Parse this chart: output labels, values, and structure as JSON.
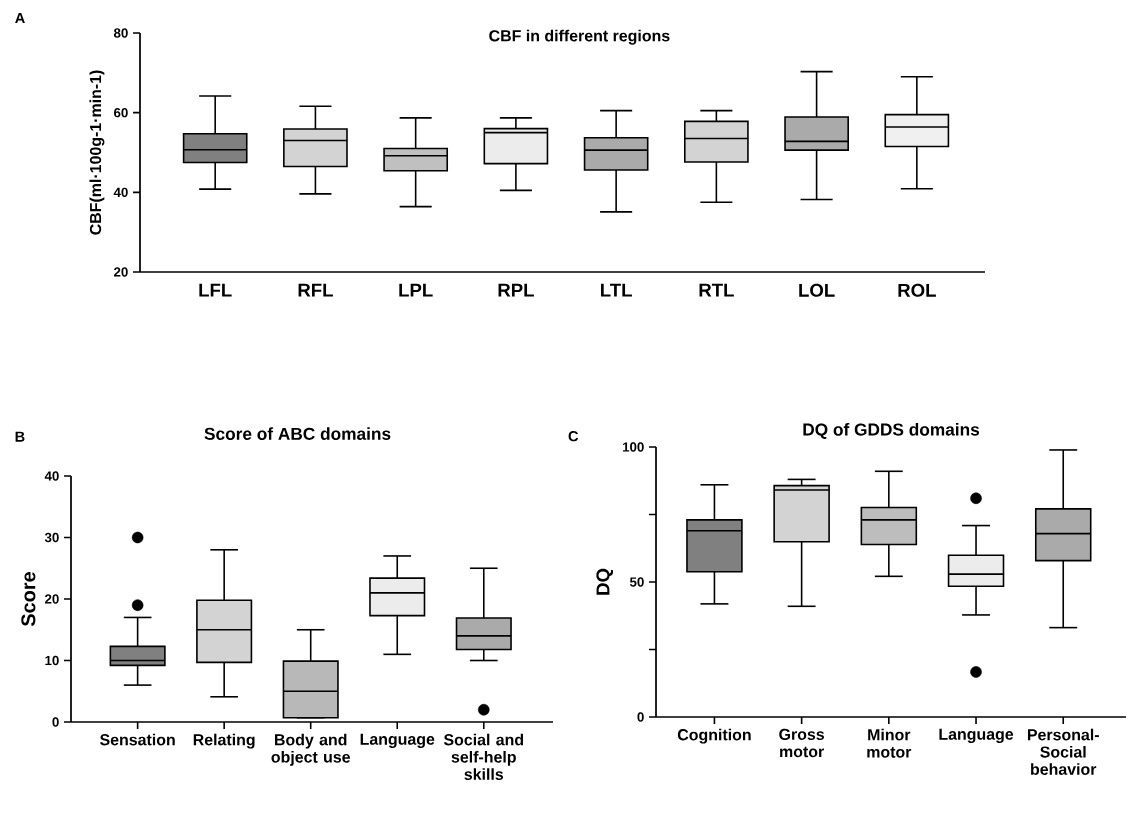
{
  "chart_data": [
    {
      "type": "box",
      "title": "CBF in different regions",
      "ylabel": "CBF(ml·100g-1·min-1)",
      "annotations": [
        "A"
      ],
      "categories": [
        "LFL",
        "RFL",
        "LPL",
        "RPL",
        "LTL",
        "RTL",
        "LOL",
        "ROL"
      ],
      "colors": [
        "#808080",
        "#d3d3d3",
        "#c0c0c0",
        "#ececec",
        "#aaaaaa",
        "#d3d3d3",
        "#aaaaaa",
        "#f0f0f0"
      ],
      "ylim": [
        20,
        80
      ],
      "yticks": [
        20,
        40,
        60,
        80
      ],
      "boxes": [
        {
          "low": 40.8,
          "q1": 47.5,
          "median": 50.7,
          "q3": 54.7,
          "high": 64.2
        },
        {
          "low": 39.6,
          "q1": 46.5,
          "median": 53.0,
          "q3": 55.9,
          "high": 61.6
        },
        {
          "low": 36.4,
          "q1": 45.4,
          "median": 49.2,
          "q3": 51.0,
          "high": 58.7
        },
        {
          "low": 40.5,
          "q1": 47.2,
          "median": 55.0,
          "q3": 56.0,
          "high": 58.7
        },
        {
          "low": 35.1,
          "q1": 45.6,
          "median": 50.6,
          "q3": 53.7,
          "high": 60.5
        },
        {
          "low": 37.5,
          "q1": 47.6,
          "median": 53.5,
          "q3": 57.8,
          "high": 60.5
        },
        {
          "low": 38.2,
          "q1": 50.6,
          "median": 52.8,
          "q3": 58.9,
          "high": 70.3
        },
        {
          "low": 40.9,
          "q1": 51.5,
          "median": 56.4,
          "q3": 59.5,
          "high": 69.0
        }
      ]
    },
    {
      "type": "box",
      "title": "Score of ABC domains",
      "ylabel": "Score",
      "annotations": [
        "B"
      ],
      "categories": [
        "Sensation",
        "Relating",
        "Body and object use",
        "Language",
        "Social and self-help skills"
      ],
      "colors": [
        "#808080",
        "#d3d3d3",
        "#b8b8b8",
        "#ececec",
        "#aaaaaa"
      ],
      "ylim": [
        0,
        40
      ],
      "yticks": [
        0,
        10,
        20,
        30,
        40
      ],
      "boxes": [
        {
          "low": 6.0,
          "q1": 9.2,
          "median": 10.0,
          "q3": 12.3,
          "high": 17.0,
          "outliers": [
            19.0,
            30.0
          ]
        },
        {
          "low": 4.1,
          "q1": 9.7,
          "median": 15.0,
          "q3": 19.8,
          "high": 28.0
        },
        {
          "low": 0.7,
          "q1": 0.7,
          "median": 5.0,
          "q3": 9.9,
          "high": 15.0
        },
        {
          "low": 11.0,
          "q1": 17.3,
          "median": 21.0,
          "q3": 23.4,
          "high": 27.0
        },
        {
          "low": 10.0,
          "q1": 11.8,
          "median": 14.0,
          "q3": 16.9,
          "high": 25.0,
          "outliers": [
            2.0
          ]
        }
      ]
    },
    {
      "type": "box",
      "title": "DQ of GDDS domains",
      "ylabel": "DQ",
      "annotations": [
        "C"
      ],
      "categories": [
        "Cognition",
        "Gross motor",
        "Minor motor",
        "Language",
        "Personal-Social behavior"
      ],
      "colors": [
        "#808080",
        "#d3d3d3",
        "#bdbdbd",
        "#ececec",
        "#aaaaaa"
      ],
      "ylim": [
        0,
        100
      ],
      "yticks": [
        0,
        {
          "value": 25,
          "label": null
        },
        50,
        {
          "value": 75,
          "label": null
        },
        100
      ],
      "boxes": [
        {
          "low": 41.9,
          "q1": 53.8,
          "median": 69.0,
          "q3": 73.0,
          "high": 86.0
        },
        {
          "low": 41.0,
          "q1": 64.9,
          "median": 84.1,
          "q3": 85.7,
          "high": 88.0
        },
        {
          "low": 52.1,
          "q1": 63.9,
          "median": 73.0,
          "q3": 77.6,
          "high": 91.0
        },
        {
          "low": 37.8,
          "q1": 48.4,
          "median": 52.9,
          "q3": 59.9,
          "high": 70.9,
          "outliers": [
            81.0,
            16.7
          ]
        },
        {
          "low": 33.1,
          "q1": 57.9,
          "median": 67.9,
          "q3": 77.1,
          "high": 98.9
        }
      ]
    }
  ]
}
